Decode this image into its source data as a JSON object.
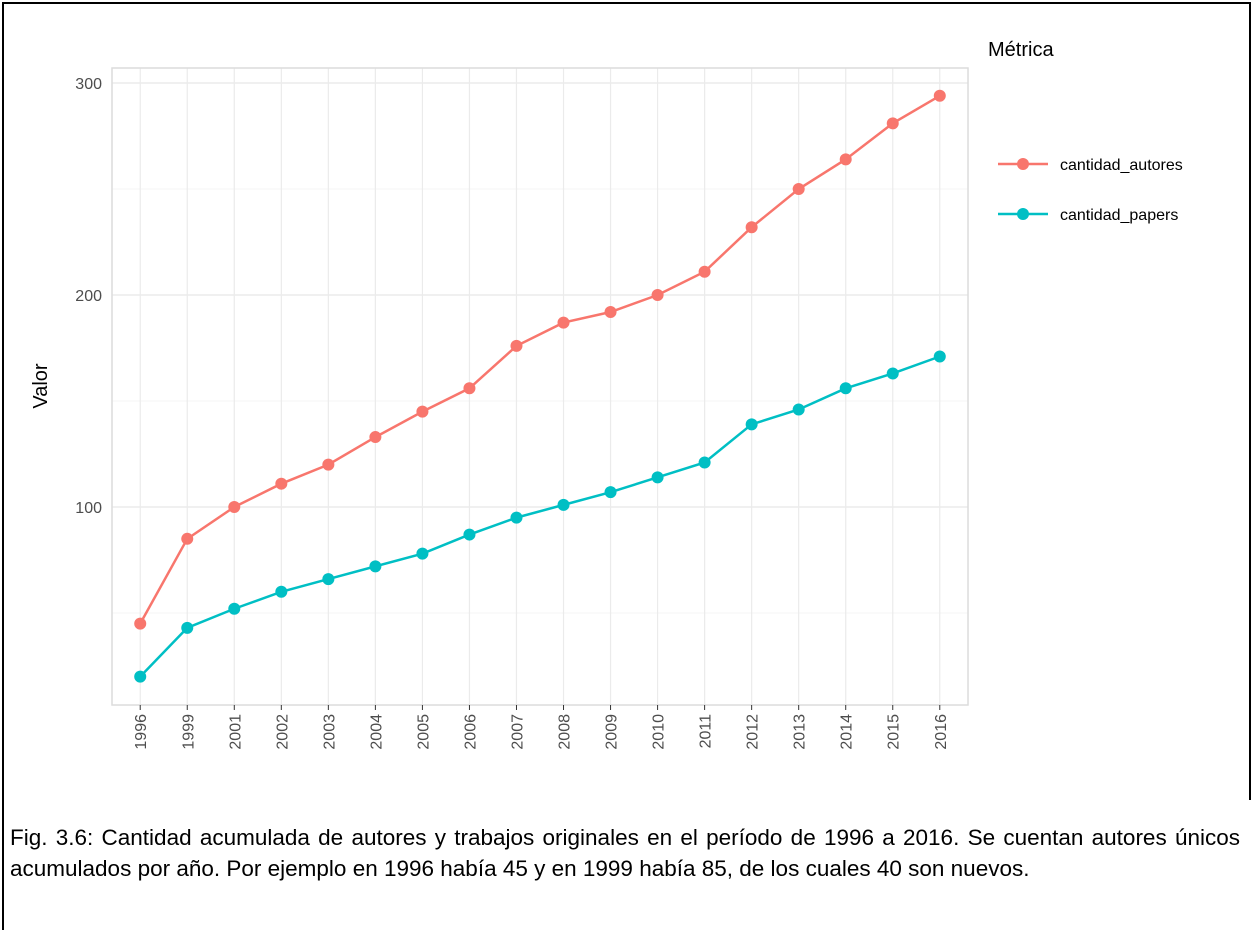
{
  "chart_data": {
    "type": "line",
    "y_label": "Valor",
    "legend_title": "Métrica",
    "legend_position": "right",
    "grid": true,
    "categories": [
      "1996",
      "1999",
      "2001",
      "2002",
      "2003",
      "2004",
      "2005",
      "2006",
      "2007",
      "2008",
      "2009",
      "2010",
      "2011",
      "2012",
      "2013",
      "2014",
      "2015",
      "2016"
    ],
    "series": [
      {
        "name": "cantidad_autores",
        "color": "#f8766d",
        "values": [
          45,
          85,
          100,
          111,
          120,
          133,
          145,
          156,
          176,
          187,
          192,
          200,
          211,
          232,
          250,
          264,
          281,
          294
        ]
      },
      {
        "name": "cantidad_papers",
        "color": "#00bfc4",
        "values": [
          20,
          43,
          52,
          60,
          66,
          72,
          78,
          87,
          95,
          101,
          107,
          114,
          121,
          139,
          146,
          156,
          163,
          171
        ]
      }
    ],
    "ylim": [
      6.6,
      307.1
    ],
    "yticks": [
      100,
      200,
      300
    ],
    "y_minor_grid": [
      50,
      150,
      250
    ]
  },
  "caption": "Fig. 3.6: Cantidad acumulada de autores y trabajos originales en el período de 1996 a 2016. Se cuentan autores únicos acumulados por año. Por ejemplo en 1996 había 45 y en 1999 había 85, de los cuales 40 son nuevos."
}
